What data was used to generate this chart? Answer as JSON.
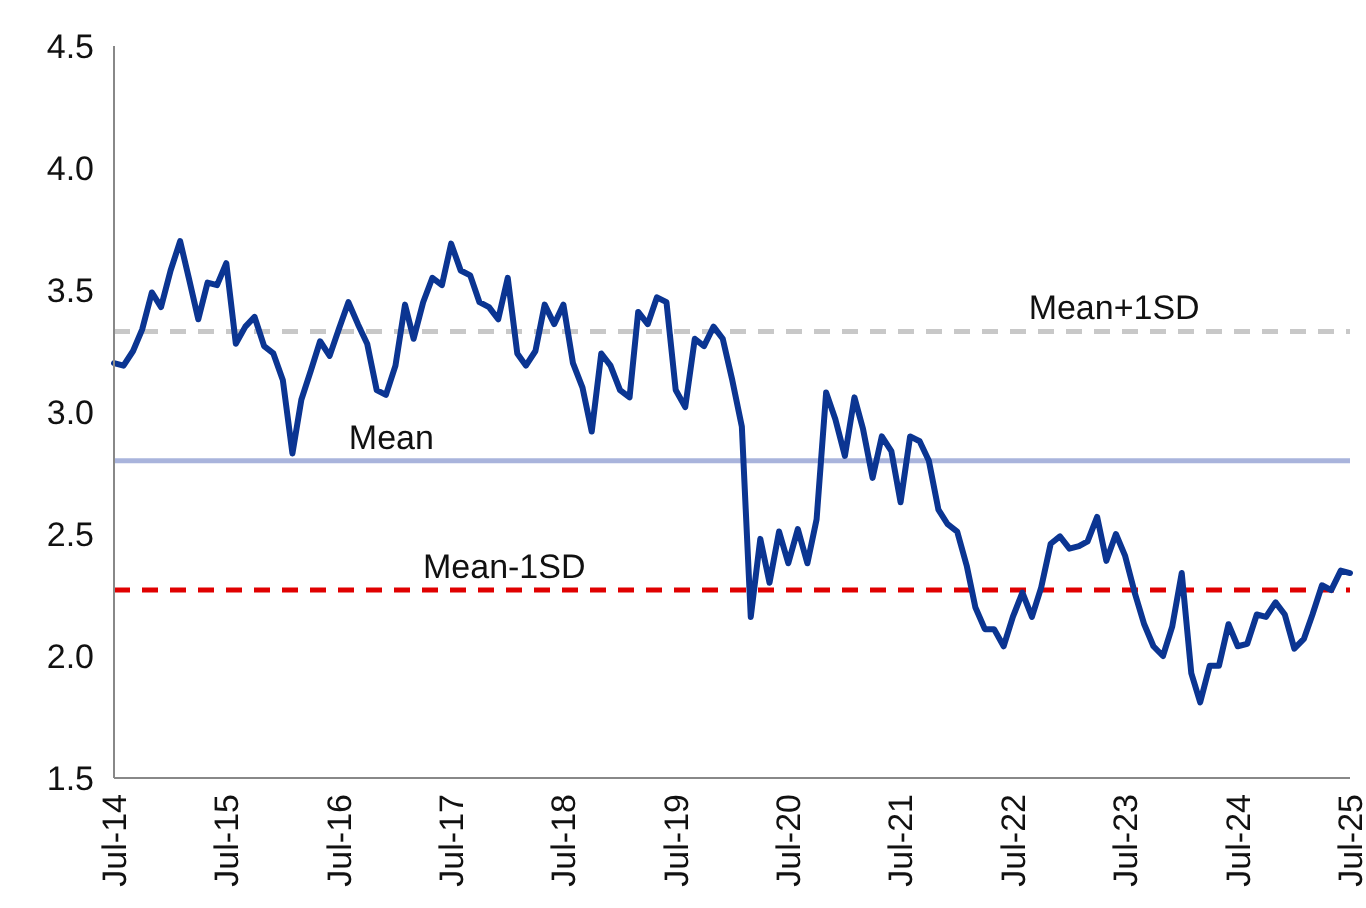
{
  "chart_data": {
    "type": "line",
    "x": [
      "2014-07",
      "2014-08",
      "2014-09",
      "2014-10",
      "2014-11",
      "2014-12",
      "2015-01",
      "2015-02",
      "2015-03",
      "2015-04",
      "2015-05",
      "2015-06",
      "2015-07",
      "2015-08",
      "2015-09",
      "2015-10",
      "2015-11",
      "2015-12",
      "2016-01",
      "2016-02",
      "2016-03",
      "2016-04",
      "2016-05",
      "2016-06",
      "2016-07",
      "2016-08",
      "2016-09",
      "2016-10",
      "2016-11",
      "2016-12",
      "2017-01",
      "2017-02",
      "2017-03",
      "2017-04",
      "2017-05",
      "2017-06",
      "2017-07",
      "2017-08",
      "2017-09",
      "2017-10",
      "2017-11",
      "2017-12",
      "2018-01",
      "2018-02",
      "2018-03",
      "2018-04",
      "2018-05",
      "2018-06",
      "2018-07",
      "2018-08",
      "2018-09",
      "2018-10",
      "2018-11",
      "2018-12",
      "2019-01",
      "2019-02",
      "2019-03",
      "2019-04",
      "2019-05",
      "2019-06",
      "2019-07",
      "2019-08",
      "2019-09",
      "2019-10",
      "2019-11",
      "2019-12",
      "2020-01",
      "2020-02",
      "2020-03",
      "2020-04",
      "2020-05",
      "2020-06",
      "2020-07",
      "2020-08",
      "2020-09",
      "2020-10",
      "2020-11",
      "2020-12",
      "2021-01",
      "2021-02",
      "2021-03",
      "2021-04",
      "2021-05",
      "2021-06",
      "2021-07",
      "2021-08",
      "2021-09",
      "2021-10",
      "2021-11",
      "2021-12",
      "2022-01",
      "2022-02",
      "2022-03",
      "2022-04",
      "2022-05",
      "2022-06",
      "2022-07",
      "2022-08",
      "2022-09",
      "2022-10",
      "2022-11",
      "2022-12",
      "2023-01",
      "2023-02",
      "2023-03",
      "2023-04",
      "2023-05",
      "2023-06",
      "2023-07",
      "2023-08",
      "2023-09",
      "2023-10",
      "2023-11",
      "2023-12",
      "2024-01",
      "2024-02",
      "2024-03",
      "2024-04",
      "2024-05",
      "2024-06",
      "2024-07",
      "2024-08",
      "2024-09",
      "2024-10",
      "2024-11",
      "2024-12",
      "2025-01",
      "2025-02",
      "2025-03",
      "2025-04",
      "2025-05",
      "2025-06",
      "2025-07"
    ],
    "series": [
      {
        "color": "#0b3592",
        "values": [
          3.2,
          3.19,
          3.25,
          3.34,
          3.49,
          3.43,
          3.58,
          3.7,
          3.55,
          3.38,
          3.53,
          3.52,
          3.61,
          3.28,
          3.35,
          3.39,
          3.27,
          3.24,
          3.13,
          2.83,
          3.05,
          3.17,
          3.29,
          3.23,
          3.34,
          3.45,
          3.36,
          3.28,
          3.09,
          3.07,
          3.19,
          3.44,
          3.3,
          3.45,
          3.55,
          3.52,
          3.69,
          3.58,
          3.56,
          3.45,
          3.43,
          3.38,
          3.55,
          3.24,
          3.19,
          3.25,
          3.44,
          3.36,
          3.44,
          3.2,
          3.1,
          2.92,
          3.24,
          3.19,
          3.09,
          3.06,
          3.41,
          3.36,
          3.47,
          3.45,
          3.09,
          3.02,
          3.3,
          3.27,
          3.35,
          3.3,
          3.13,
          2.94,
          2.16,
          2.48,
          2.3,
          2.51,
          2.38,
          2.52,
          2.38,
          2.56,
          3.08,
          2.97,
          2.82,
          3.06,
          2.93,
          2.73,
          2.9,
          2.84,
          2.63,
          2.9,
          2.88,
          2.8,
          2.6,
          2.54,
          2.51,
          2.37,
          2.2,
          2.11,
          2.11,
          2.04,
          2.16,
          2.26,
          2.16,
          2.28,
          2.46,
          2.49,
          2.44,
          2.45,
          2.47,
          2.57,
          2.39,
          2.5,
          2.41,
          2.26,
          2.13,
          2.04,
          2.0,
          2.12,
          2.34,
          1.93,
          1.81,
          1.96,
          1.96,
          2.13,
          2.04,
          2.05,
          2.17,
          2.16,
          2.22,
          2.17,
          2.03,
          2.07,
          2.17,
          2.29,
          2.27,
          2.35,
          2.34
        ]
      }
    ],
    "xlim": [
      "2014-07",
      "2025-07"
    ],
    "xticks": [
      {
        "value": "2014-07",
        "label": "Jul-14"
      },
      {
        "value": "2015-07",
        "label": "Jul-15"
      },
      {
        "value": "2016-07",
        "label": "Jul-16"
      },
      {
        "value": "2017-07",
        "label": "Jul-17"
      },
      {
        "value": "2018-07",
        "label": "Jul-18"
      },
      {
        "value": "2019-07",
        "label": "Jul-19"
      },
      {
        "value": "2020-07",
        "label": "Jul-20"
      },
      {
        "value": "2021-07",
        "label": "Jul-21"
      },
      {
        "value": "2022-07",
        "label": "Jul-22"
      },
      {
        "value": "2023-07",
        "label": "Jul-23"
      },
      {
        "value": "2024-07",
        "label": "Jul-24"
      },
      {
        "value": "2025-07",
        "label": "Jul-25"
      }
    ],
    "ylim": [
      1.5,
      4.5
    ],
    "yticks": [
      {
        "value": 1.5,
        "label": "1.5"
      },
      {
        "value": 2,
        "label": "2.0"
      },
      {
        "value": 2.5,
        "label": "2.5"
      },
      {
        "value": 3,
        "label": "3.0"
      },
      {
        "value": 3.5,
        "label": "3.5"
      },
      {
        "value": 4,
        "label": "4.0"
      },
      {
        "value": 4.5,
        "label": "4.5"
      }
    ],
    "ref_lines": [
      {
        "axis": "y",
        "value": 3.33,
        "label": "Mean+1SD",
        "color": "#c8c8c8",
        "line_style": "dashed"
      },
      {
        "axis": "y",
        "value": 2.8,
        "label": "Mean",
        "color": "#a9b4dc",
        "line_style": "solid"
      },
      {
        "axis": "y",
        "value": 2.27,
        "label": "Mean-1SD",
        "color": "#e00000",
        "line_style": "dashed"
      }
    ],
    "grid": false,
    "marker": "none",
    "line_style": "solid"
  }
}
